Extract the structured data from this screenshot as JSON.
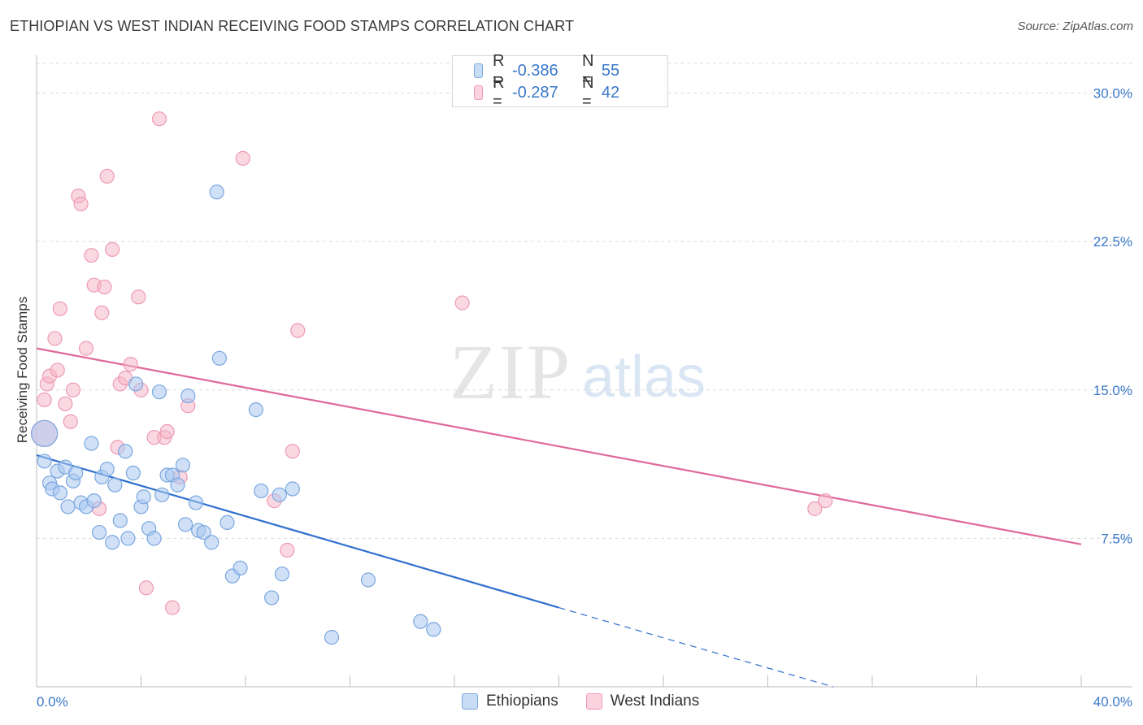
{
  "header": {
    "title": "ETHIOPIAN VS WEST INDIAN RECEIVING FOOD STAMPS CORRELATION CHART",
    "source": "Source: ZipAtlas.com"
  },
  "watermark": {
    "zip": "ZIP",
    "atlas": "atlas"
  },
  "legend": {
    "rows": [
      {
        "r_label": "R =",
        "r_value": "-0.386",
        "n_label": "N =",
        "n_value": "55",
        "color": "#a9c8f0"
      },
      {
        "r_label": "R =",
        "r_value": "-0.287",
        "n_label": "N =",
        "n_value": "42",
        "color": "#f6b8cb"
      }
    ]
  },
  "bottom_legend": {
    "items": [
      "Ethiopians",
      "West Indians"
    ]
  },
  "colors": {
    "blue_fill": "#a9c8f0",
    "blue_stroke": "#7aa7e0",
    "blue_line": "#2f6fce",
    "pink_fill": "#f6b8cb",
    "pink_stroke": "#ee9ab4",
    "pink_line": "#e0689a",
    "tick_label": "#3a78c9",
    "grid": "#dcdcdc"
  },
  "chart_data": {
    "type": "scatter",
    "title": "ETHIOPIAN VS WEST INDIAN RECEIVING FOOD STAMPS CORRELATION CHART",
    "xlabel": "",
    "ylabel": "Receiving Food Stamps",
    "xlim": [
      0,
      40
    ],
    "ylim": [
      0,
      31.5
    ],
    "x_tick_labels": [
      "0.0%",
      "40.0%"
    ],
    "y_ticks": [
      7.5,
      15.0,
      22.5,
      30.0
    ],
    "y_tick_labels": [
      "7.5%",
      "15.0%",
      "22.5%",
      "30.0%"
    ],
    "grid": true,
    "legend_position": "top-center",
    "series": [
      {
        "name": "Ethiopians",
        "points": [
          [
            0.3,
            12.8
          ],
          [
            0.3,
            11.4
          ],
          [
            0.5,
            10.3
          ],
          [
            0.6,
            10.0
          ],
          [
            0.8,
            10.9
          ],
          [
            0.9,
            9.8
          ],
          [
            1.1,
            11.1
          ],
          [
            1.2,
            9.1
          ],
          [
            1.4,
            10.4
          ],
          [
            1.5,
            10.8
          ],
          [
            1.7,
            9.3
          ],
          [
            1.9,
            9.1
          ],
          [
            2.1,
            12.3
          ],
          [
            2.2,
            9.4
          ],
          [
            2.4,
            7.8
          ],
          [
            2.5,
            10.6
          ],
          [
            2.7,
            11.0
          ],
          [
            2.9,
            7.3
          ],
          [
            3.0,
            10.2
          ],
          [
            3.2,
            8.4
          ],
          [
            3.4,
            11.9
          ],
          [
            3.5,
            7.5
          ],
          [
            3.7,
            10.8
          ],
          [
            3.8,
            15.3
          ],
          [
            4.0,
            9.1
          ],
          [
            4.1,
            9.6
          ],
          [
            4.3,
            8.0
          ],
          [
            4.5,
            7.5
          ],
          [
            4.7,
            14.9
          ],
          [
            4.8,
            9.7
          ],
          [
            5.0,
            10.7
          ],
          [
            5.2,
            10.7
          ],
          [
            5.4,
            10.2
          ],
          [
            5.6,
            11.2
          ],
          [
            5.7,
            8.2
          ],
          [
            5.8,
            14.7
          ],
          [
            6.1,
            9.3
          ],
          [
            6.2,
            7.9
          ],
          [
            6.4,
            7.8
          ],
          [
            6.7,
            7.3
          ],
          [
            6.9,
            25.0
          ],
          [
            7.0,
            16.6
          ],
          [
            7.3,
            8.3
          ],
          [
            7.5,
            5.6
          ],
          [
            7.8,
            6.0
          ],
          [
            8.4,
            14.0
          ],
          [
            8.6,
            9.9
          ],
          [
            9.0,
            4.5
          ],
          [
            9.3,
            9.7
          ],
          [
            9.4,
            5.7
          ],
          [
            9.8,
            10.0
          ],
          [
            11.3,
            2.5
          ],
          [
            12.7,
            5.4
          ],
          [
            14.7,
            3.3
          ],
          [
            15.2,
            2.9
          ]
        ],
        "trend": {
          "x": [
            0,
            20
          ],
          "y": [
            11.7,
            4.0
          ]
        },
        "trend_dashed_extension": {
          "x": [
            20,
            30.5
          ],
          "y": [
            4.0,
            0.0
          ]
        }
      },
      {
        "name": "West Indians",
        "points": [
          [
            0.3,
            12.8
          ],
          [
            0.3,
            14.5
          ],
          [
            0.4,
            15.3
          ],
          [
            0.5,
            15.7
          ],
          [
            0.7,
            17.6
          ],
          [
            0.8,
            16.0
          ],
          [
            0.9,
            19.1
          ],
          [
            1.1,
            14.3
          ],
          [
            1.3,
            13.4
          ],
          [
            1.4,
            15.0
          ],
          [
            1.6,
            24.8
          ],
          [
            1.7,
            24.4
          ],
          [
            1.9,
            17.1
          ],
          [
            2.1,
            21.8
          ],
          [
            2.2,
            20.3
          ],
          [
            2.4,
            9.0
          ],
          [
            2.5,
            18.9
          ],
          [
            2.6,
            20.2
          ],
          [
            2.7,
            25.8
          ],
          [
            2.9,
            22.1
          ],
          [
            3.1,
            12.1
          ],
          [
            3.2,
            15.3
          ],
          [
            3.4,
            15.6
          ],
          [
            3.6,
            16.3
          ],
          [
            3.9,
            19.7
          ],
          [
            4.0,
            15.0
          ],
          [
            4.2,
            5.0
          ],
          [
            4.5,
            12.6
          ],
          [
            4.7,
            28.7
          ],
          [
            4.9,
            12.6
          ],
          [
            5.0,
            12.9
          ],
          [
            5.2,
            4.0
          ],
          [
            5.5,
            10.6
          ],
          [
            5.8,
            14.2
          ],
          [
            7.9,
            26.7
          ],
          [
            9.1,
            9.4
          ],
          [
            9.6,
            6.9
          ],
          [
            9.8,
            11.9
          ],
          [
            10.0,
            18.0
          ],
          [
            16.3,
            19.4
          ],
          [
            29.8,
            9.0
          ],
          [
            30.2,
            9.4
          ]
        ],
        "trend": {
          "x": [
            0,
            40
          ],
          "y": [
            17.1,
            7.2
          ]
        }
      }
    ]
  }
}
